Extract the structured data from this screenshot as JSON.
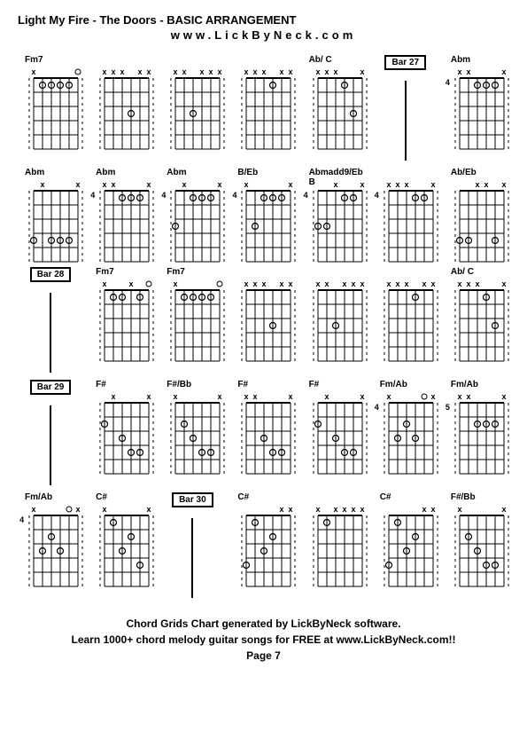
{
  "title": "Light My Fire - The Doors  - BASIC ARRANGEMENT",
  "subtitle": "www.LickByNeck.com",
  "footer_line1": "Chord Grids Chart generated by LickByNeck software.",
  "footer_line2": "Learn 1000+ chord melody guitar songs for FREE at www.LickByNeck.com!!",
  "footer_page": "Page 7",
  "colors": {
    "background": "#ffffff",
    "line": "#000000",
    "text": "#000000"
  },
  "fretboard_config": {
    "strings": 6,
    "frets": 5,
    "width": 50,
    "height": 80,
    "string_spacing": 10,
    "fret_spacing": 16
  },
  "rows": [
    [
      {
        "type": "chord",
        "label": "Fm7",
        "fretNum": "",
        "dots": [
          {
            "s": 1,
            "f": 1
          },
          {
            "s": 2,
            "f": 1
          },
          {
            "s": 3,
            "f": 1
          },
          {
            "s": 4,
            "f": 1
          }
        ],
        "open": [
          5
        ],
        "muted": [
          0
        ]
      },
      {
        "type": "chord",
        "label": "",
        "fretNum": "",
        "dots": [
          {
            "s": 3,
            "f": 3
          }
        ],
        "open": [],
        "muted": [
          0,
          1,
          2,
          4,
          5
        ]
      },
      {
        "type": "chord",
        "label": "",
        "fretNum": "",
        "dots": [
          {
            "s": 2,
            "f": 3
          }
        ],
        "open": [],
        "muted": [
          0,
          1,
          3,
          4,
          5
        ]
      },
      {
        "type": "chord",
        "label": "",
        "fretNum": "",
        "dots": [
          {
            "s": 3,
            "f": 1
          }
        ],
        "open": [],
        "muted": [
          0,
          1,
          2,
          4,
          5
        ]
      },
      {
        "type": "chord",
        "label": "Ab/ C",
        "fretNum": "",
        "dots": [
          {
            "s": 3,
            "f": 1
          },
          {
            "s": 4,
            "f": 3
          }
        ],
        "open": [],
        "muted": [
          0,
          1,
          2,
          5
        ]
      },
      {
        "type": "bar",
        "label": "Bar 27"
      },
      {
        "type": "chord",
        "label": "Abm",
        "fretNum": "4",
        "dots": [
          {
            "s": 2,
            "f": 1
          },
          {
            "s": 3,
            "f": 1
          },
          {
            "s": 4,
            "f": 1
          }
        ],
        "open": [],
        "muted": [
          0,
          1,
          5
        ]
      }
    ],
    [
      {
        "type": "chord",
        "label": "Abm",
        "fretNum": "",
        "dots": [
          {
            "s": 0,
            "f": 4
          },
          {
            "s": 2,
            "f": 4
          },
          {
            "s": 3,
            "f": 4
          },
          {
            "s": 4,
            "f": 4
          }
        ],
        "open": [],
        "muted": [
          1,
          5
        ]
      },
      {
        "type": "chord",
        "label": "Abm",
        "fretNum": "4",
        "dots": [
          {
            "s": 2,
            "f": 1
          },
          {
            "s": 3,
            "f": 1
          },
          {
            "s": 4,
            "f": 1
          }
        ],
        "open": [],
        "muted": [
          0,
          1,
          5
        ]
      },
      {
        "type": "chord",
        "label": "Abm",
        "fretNum": "4",
        "dots": [
          {
            "s": 0,
            "f": 3
          },
          {
            "s": 2,
            "f": 1
          },
          {
            "s": 3,
            "f": 1
          },
          {
            "s": 4,
            "f": 1
          }
        ],
        "open": [],
        "muted": [
          1,
          5
        ]
      },
      {
        "type": "chord",
        "label": "B/Eb",
        "fretNum": "4",
        "dots": [
          {
            "s": 1,
            "f": 3
          },
          {
            "s": 2,
            "f": 1
          },
          {
            "s": 3,
            "f": 1
          },
          {
            "s": 4,
            "f": 1
          }
        ],
        "open": [],
        "muted": [
          0,
          5
        ]
      },
      {
        "type": "chord",
        "label": "Abmadd9/Eb B",
        "fretNum": "4",
        "dots": [
          {
            "s": 0,
            "f": 3
          },
          {
            "s": 1,
            "f": 3
          },
          {
            "s": 3,
            "f": 1
          },
          {
            "s": 4,
            "f": 1
          }
        ],
        "open": [],
        "muted": [
          2,
          5
        ]
      },
      {
        "type": "chord",
        "label": "",
        "fretNum": "4",
        "dots": [
          {
            "s": 3,
            "f": 1
          },
          {
            "s": 4,
            "f": 1
          }
        ],
        "open": [],
        "muted": [
          0,
          1,
          2,
          5
        ]
      },
      {
        "type": "chord",
        "label": "Ab/Eb",
        "fretNum": "",
        "dots": [
          {
            "s": 0,
            "f": 4
          },
          {
            "s": 1,
            "f": 4
          },
          {
            "s": 4,
            "f": 4
          }
        ],
        "open": [],
        "muted": [
          2,
          3,
          5
        ]
      }
    ],
    [
      {
        "type": "bar",
        "label": "Bar 28"
      },
      {
        "type": "chord",
        "label": "Fm7",
        "fretNum": "",
        "dots": [
          {
            "s": 1,
            "f": 1
          },
          {
            "s": 2,
            "f": 1
          },
          {
            "s": 4,
            "f": 1
          }
        ],
        "open": [
          5
        ],
        "muted": [
          0,
          3
        ]
      },
      {
        "type": "chord",
        "label": "Fm7",
        "fretNum": "",
        "dots": [
          {
            "s": 1,
            "f": 1
          },
          {
            "s": 2,
            "f": 1
          },
          {
            "s": 3,
            "f": 1
          },
          {
            "s": 4,
            "f": 1
          }
        ],
        "open": [
          5
        ],
        "muted": [
          0
        ]
      },
      {
        "type": "chord",
        "label": "",
        "fretNum": "",
        "dots": [
          {
            "s": 3,
            "f": 3
          }
        ],
        "open": [],
        "muted": [
          0,
          1,
          2,
          4,
          5
        ]
      },
      {
        "type": "chord",
        "label": "",
        "fretNum": "",
        "dots": [
          {
            "s": 2,
            "f": 3
          }
        ],
        "open": [],
        "muted": [
          0,
          1,
          3,
          4,
          5
        ]
      },
      {
        "type": "chord",
        "label": "",
        "fretNum": "",
        "dots": [
          {
            "s": 3,
            "f": 1
          }
        ],
        "open": [],
        "muted": [
          0,
          1,
          2,
          4,
          5
        ]
      },
      {
        "type": "chord",
        "label": "Ab/ C",
        "fretNum": "",
        "dots": [
          {
            "s": 3,
            "f": 1
          },
          {
            "s": 4,
            "f": 3
          }
        ],
        "open": [],
        "muted": [
          0,
          1,
          2,
          5
        ]
      }
    ],
    [
      {
        "type": "bar",
        "label": "Bar 29"
      },
      {
        "type": "chord",
        "label": "F#",
        "fretNum": "",
        "dots": [
          {
            "s": 0,
            "f": 2
          },
          {
            "s": 2,
            "f": 3
          },
          {
            "s": 3,
            "f": 4
          },
          {
            "s": 4,
            "f": 4
          }
        ],
        "open": [],
        "muted": [
          1,
          5
        ]
      },
      {
        "type": "chord",
        "label": "F#/Bb",
        "fretNum": "",
        "dots": [
          {
            "s": 1,
            "f": 2
          },
          {
            "s": 2,
            "f": 3
          },
          {
            "s": 3,
            "f": 4
          },
          {
            "s": 4,
            "f": 4
          }
        ],
        "open": [],
        "muted": [
          0,
          5
        ]
      },
      {
        "type": "chord",
        "label": "F#",
        "fretNum": "",
        "dots": [
          {
            "s": 2,
            "f": 3
          },
          {
            "s": 3,
            "f": 4
          },
          {
            "s": 4,
            "f": 4
          }
        ],
        "open": [],
        "muted": [
          0,
          1,
          5
        ]
      },
      {
        "type": "chord",
        "label": "F#",
        "fretNum": "",
        "dots": [
          {
            "s": 0,
            "f": 2
          },
          {
            "s": 2,
            "f": 3
          },
          {
            "s": 3,
            "f": 4
          },
          {
            "s": 4,
            "f": 4
          }
        ],
        "open": [],
        "muted": [
          1,
          5
        ]
      },
      {
        "type": "chord",
        "label": "Fm/Ab",
        "fretNum": "4",
        "dots": [
          {
            "s": 1,
            "f": 3
          },
          {
            "s": 2,
            "f": 2
          },
          {
            "s": 3,
            "f": 3
          }
        ],
        "open": [
          4
        ],
        "muted": [
          0,
          5
        ]
      },
      {
        "type": "chord",
        "label": "Fm/Ab",
        "fretNum": "5",
        "dots": [
          {
            "s": 2,
            "f": 2
          },
          {
            "s": 3,
            "f": 2
          },
          {
            "s": 4,
            "f": 2
          }
        ],
        "open": [],
        "muted": [
          0,
          1,
          5
        ]
      }
    ],
    [
      {
        "type": "chord",
        "label": "Fm/Ab",
        "fretNum": "4",
        "dots": [
          {
            "s": 1,
            "f": 3
          },
          {
            "s": 2,
            "f": 2
          },
          {
            "s": 3,
            "f": 3
          }
        ],
        "open": [
          4
        ],
        "muted": [
          0,
          5
        ]
      },
      {
        "type": "chord",
        "label": "C#",
        "fretNum": "",
        "dots": [
          {
            "s": 1,
            "f": 1
          },
          {
            "s": 2,
            "f": 3
          },
          {
            "s": 3,
            "f": 2
          },
          {
            "s": 4,
            "f": 4
          }
        ],
        "open": [],
        "muted": [
          0,
          5
        ]
      },
      {
        "type": "bar",
        "label": "Bar 30"
      },
      {
        "type": "chord",
        "label": "C#",
        "fretNum": "",
        "dots": [
          {
            "s": 0,
            "f": 4
          },
          {
            "s": 1,
            "f": 1
          },
          {
            "s": 2,
            "f": 3
          },
          {
            "s": 3,
            "f": 2
          }
        ],
        "open": [],
        "muted": [
          4,
          5
        ]
      },
      {
        "type": "chord",
        "label": "",
        "fretNum": "",
        "dots": [
          {
            "s": 1,
            "f": 1
          }
        ],
        "open": [],
        "muted": [
          0,
          2,
          3,
          4,
          5
        ]
      },
      {
        "type": "chord",
        "label": "C#",
        "fretNum": "",
        "dots": [
          {
            "s": 0,
            "f": 4
          },
          {
            "s": 1,
            "f": 1
          },
          {
            "s": 2,
            "f": 3
          },
          {
            "s": 3,
            "f": 2
          }
        ],
        "open": [],
        "muted": [
          4,
          5
        ]
      },
      {
        "type": "chord",
        "label": "F#/Bb",
        "fretNum": "",
        "dots": [
          {
            "s": 1,
            "f": 2
          },
          {
            "s": 2,
            "f": 3
          },
          {
            "s": 3,
            "f": 4
          },
          {
            "s": 4,
            "f": 4
          }
        ],
        "open": [],
        "muted": [
          0,
          5
        ]
      }
    ]
  ]
}
